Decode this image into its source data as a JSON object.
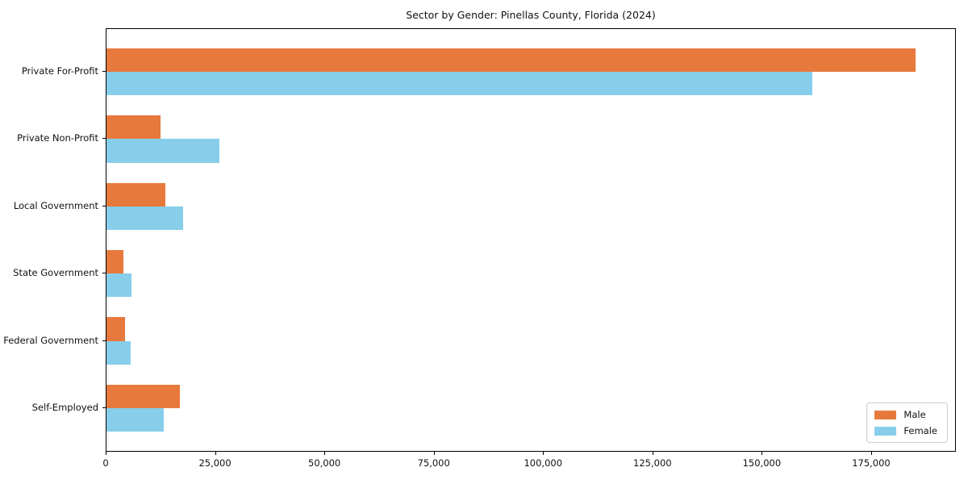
{
  "chart_data": {
    "type": "bar",
    "orientation": "horizontal",
    "title": "Sector by Gender: Pinellas County, Florida (2024)",
    "categories": [
      "Private For-Profit",
      "Private Non-Profit",
      "Local Government",
      "State Government",
      "Federal Government",
      "Self-Employed"
    ],
    "series": [
      {
        "name": "Male",
        "color": "#e8793d",
        "values": [
          185000,
          12300,
          13500,
          3900,
          4300,
          16700
        ]
      },
      {
        "name": "Female",
        "color": "#87ceeb",
        "values": [
          161300,
          25900,
          17500,
          5700,
          5500,
          13100
        ]
      }
    ],
    "xlabel": "",
    "ylabel": "",
    "xlim": [
      0,
      194000
    ],
    "xticks": [
      0,
      25000,
      50000,
      75000,
      100000,
      125000,
      150000,
      175000
    ],
    "xtick_labels": [
      "0",
      "25,000",
      "50,000",
      "75,000",
      "100,000",
      "125,000",
      "150,000",
      "175,000"
    ],
    "grid": false,
    "legend": {
      "position": "lower right"
    },
    "colors": {
      "axis": "#000000",
      "text": "#111111",
      "background": "#ffffff",
      "legend_border": "#cccccc"
    }
  }
}
